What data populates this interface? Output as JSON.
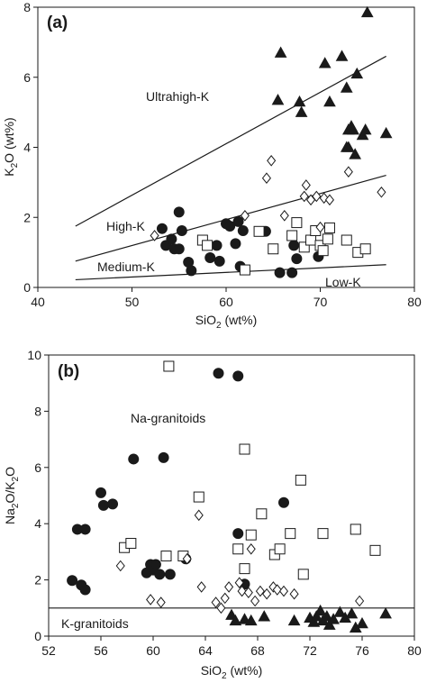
{
  "chart_data": [
    {
      "type": "scatter",
      "panel_label": "(a)",
      "xlabel_base": "SiO",
      "xlabel_sub": "2",
      "xlabel_tail": " (wt%)",
      "ylabel_base": "K",
      "ylabel_sub": "2",
      "ylabel_tail": "O (wt%)",
      "xlim": [
        40,
        80
      ],
      "ylim": [
        0,
        8
      ],
      "xticks": [
        40,
        50,
        60,
        70,
        80
      ],
      "yticks": [
        0,
        2,
        4,
        6,
        8
      ],
      "grid": false,
      "lines": [
        {
          "label": "Ultrahigh-K / High-K boundary",
          "x": [
            44,
            77
          ],
          "y": [
            1.75,
            6.6
          ]
        },
        {
          "label": "High-K / Medium-K boundary",
          "x": [
            44,
            77
          ],
          "y": [
            0.75,
            3.2
          ]
        },
        {
          "label": "Medium-K / Low-K boundary",
          "x": [
            44,
            77
          ],
          "y": [
            0.22,
            0.65
          ]
        }
      ],
      "annotations": [
        "Ultrahigh-K",
        "High-K",
        "Medium-K",
        "Low-K"
      ],
      "series": [
        {
          "marker": "filled-circle",
          "points": [
            [
              53.2,
              1.68
            ],
            [
              53.6,
              1.2
            ],
            [
              54.2,
              1.38
            ],
            [
              54.5,
              1.1
            ],
            [
              55.0,
              2.15
            ],
            [
              55.3,
              1.62
            ],
            [
              55.0,
              1.1
            ],
            [
              56.0,
              0.72
            ],
            [
              56.3,
              0.48
            ],
            [
              58.3,
              0.85
            ],
            [
              59.0,
              1.2
            ],
            [
              59.3,
              0.75
            ],
            [
              60.0,
              1.82
            ],
            [
              60.4,
              1.75
            ],
            [
              61.0,
              1.25
            ],
            [
              61.3,
              1.88
            ],
            [
              61.8,
              1.62
            ],
            [
              61.5,
              0.6
            ],
            [
              64.2,
              1.6
            ],
            [
              65.7,
              0.42
            ],
            [
              67.0,
              0.42
            ],
            [
              67.2,
              1.2
            ],
            [
              67.5,
              0.82
            ],
            [
              69.8,
              0.88
            ]
          ]
        },
        {
          "marker": "open-square",
          "points": [
            [
              57.5,
              1.35
            ],
            [
              58.0,
              1.2
            ],
            [
              62.0,
              0.5
            ],
            [
              63.5,
              1.6
            ],
            [
              65.0,
              1.1
            ],
            [
              67.0,
              1.48
            ],
            [
              67.5,
              1.85
            ],
            [
              68.3,
              1.15
            ],
            [
              69.0,
              1.35
            ],
            [
              69.5,
              1.62
            ],
            [
              70.0,
              1.2
            ],
            [
              70.3,
              1.05
            ],
            [
              70.8,
              1.38
            ],
            [
              71.0,
              1.7
            ],
            [
              72.8,
              1.35
            ],
            [
              74.0,
              1.0
            ],
            [
              74.8,
              1.1
            ]
          ]
        },
        {
          "marker": "open-diamond",
          "points": [
            [
              52.4,
              1.48
            ],
            [
              62.0,
              2.05
            ],
            [
              64.3,
              3.12
            ],
            [
              64.8,
              3.62
            ],
            [
              66.2,
              2.05
            ],
            [
              68.3,
              2.6
            ],
            [
              68.5,
              2.92
            ],
            [
              69.0,
              2.5
            ],
            [
              69.6,
              2.6
            ],
            [
              70.0,
              1.72
            ],
            [
              70.4,
              2.55
            ],
            [
              71.0,
              2.5
            ],
            [
              73.0,
              3.3
            ],
            [
              76.5,
              2.72
            ]
          ]
        },
        {
          "marker": "filled-triangle",
          "points": [
            [
              65.5,
              5.35
            ],
            [
              65.8,
              6.7
            ],
            [
              67.8,
              5.3
            ],
            [
              68.0,
              5.0
            ],
            [
              70.5,
              6.4
            ],
            [
              71.0,
              5.3
            ],
            [
              72.3,
              6.6
            ],
            [
              72.8,
              5.7
            ],
            [
              73.0,
              4.5
            ],
            [
              72.8,
              4.0
            ],
            [
              73.0,
              4.0
            ],
            [
              73.3,
              4.6
            ],
            [
              73.5,
              4.5
            ],
            [
              73.7,
              3.8
            ],
            [
              73.9,
              6.1
            ],
            [
              74.5,
              4.35
            ],
            [
              74.8,
              4.5
            ],
            [
              75.0,
              7.85
            ],
            [
              77.0,
              4.4
            ]
          ]
        }
      ]
    },
    {
      "type": "scatter",
      "panel_label": "(b)",
      "xlabel_base": "SiO",
      "xlabel_sub": "2",
      "xlabel_tail": " (wt%)",
      "ylabel_base": "Na",
      "ylabel_sub": "2",
      "ylabel_tail": "O/K",
      "ylabel_sub2": "2",
      "ylabel_tail2": "O",
      "xlim": [
        52,
        80
      ],
      "ylim": [
        0,
        10
      ],
      "xticks": [
        52,
        56,
        60,
        64,
        68,
        72,
        76,
        80
      ],
      "yticks": [
        0,
        2,
        4,
        6,
        8,
        10
      ],
      "grid": false,
      "lines": [
        {
          "label": "Na-granitoids / K-granitoids boundary",
          "x": [
            52,
            80
          ],
          "y": [
            1,
            1
          ]
        }
      ],
      "annotations": [
        "Na-granitoids",
        "K-granitoids"
      ],
      "series": [
        {
          "marker": "filled-circle",
          "points": [
            [
              53.8,
              1.98
            ],
            [
              54.2,
              3.8
            ],
            [
              54.5,
              1.82
            ],
            [
              54.8,
              1.65
            ],
            [
              54.8,
              3.8
            ],
            [
              56.0,
              5.1
            ],
            [
              56.2,
              4.65
            ],
            [
              56.9,
              4.7
            ],
            [
              58.5,
              6.3
            ],
            [
              59.5,
              2.25
            ],
            [
              59.8,
              2.55
            ],
            [
              60.0,
              2.35
            ],
            [
              60.2,
              2.55
            ],
            [
              60.5,
              2.2
            ],
            [
              60.8,
              6.35
            ],
            [
              61.3,
              2.2
            ],
            [
              62.5,
              2.75
            ],
            [
              65.0,
              9.35
            ],
            [
              66.5,
              9.25
            ],
            [
              66.5,
              3.65
            ],
            [
              67.0,
              1.85
            ],
            [
              70.0,
              4.75
            ]
          ]
        },
        {
          "marker": "open-square",
          "points": [
            [
              57.8,
              3.15
            ],
            [
              58.3,
              3.3
            ],
            [
              61.2,
              9.6
            ],
            [
              61.0,
              2.85
            ],
            [
              62.3,
              2.85
            ],
            [
              63.5,
              4.95
            ],
            [
              66.5,
              3.1
            ],
            [
              67.0,
              2.4
            ],
            [
              67.0,
              6.65
            ],
            [
              67.5,
              3.6
            ],
            [
              68.3,
              4.35
            ],
            [
              69.3,
              2.9
            ],
            [
              69.7,
              3.1
            ],
            [
              70.5,
              3.65
            ],
            [
              71.3,
              5.55
            ],
            [
              71.5,
              2.2
            ],
            [
              73.0,
              3.65
            ],
            [
              75.5,
              3.8
            ],
            [
              77.0,
              3.05
            ]
          ]
        },
        {
          "marker": "open-diamond",
          "points": [
            [
              57.5,
              2.5
            ],
            [
              59.8,
              1.3
            ],
            [
              60.6,
              1.2
            ],
            [
              62.6,
              2.75
            ],
            [
              63.5,
              4.3
            ],
            [
              63.7,
              1.75
            ],
            [
              64.8,
              1.2
            ],
            [
              65.2,
              1.0
            ],
            [
              65.5,
              1.35
            ],
            [
              65.8,
              1.75
            ],
            [
              66.6,
              1.9
            ],
            [
              66.8,
              1.6
            ],
            [
              67.3,
              1.55
            ],
            [
              67.5,
              3.1
            ],
            [
              67.8,
              1.25
            ],
            [
              68.2,
              1.6
            ],
            [
              68.7,
              1.5
            ],
            [
              69.2,
              1.75
            ],
            [
              69.5,
              1.65
            ],
            [
              70.0,
              1.6
            ],
            [
              70.8,
              1.5
            ],
            [
              75.8,
              1.25
            ]
          ]
        },
        {
          "marker": "filled-triangle",
          "points": [
            [
              66.0,
              0.75
            ],
            [
              66.3,
              0.55
            ],
            [
              67.0,
              0.6
            ],
            [
              67.5,
              0.55
            ],
            [
              68.5,
              0.7
            ],
            [
              70.8,
              0.55
            ],
            [
              72.0,
              0.65
            ],
            [
              72.3,
              0.5
            ],
            [
              72.5,
              0.7
            ],
            [
              72.8,
              0.9
            ],
            [
              73.0,
              0.55
            ],
            [
              73.3,
              0.7
            ],
            [
              73.5,
              0.4
            ],
            [
              73.8,
              0.6
            ],
            [
              74.3,
              0.85
            ],
            [
              74.7,
              0.65
            ],
            [
              75.2,
              0.8
            ],
            [
              75.5,
              0.3
            ],
            [
              76.0,
              0.45
            ],
            [
              77.8,
              0.8
            ]
          ]
        }
      ]
    }
  ]
}
